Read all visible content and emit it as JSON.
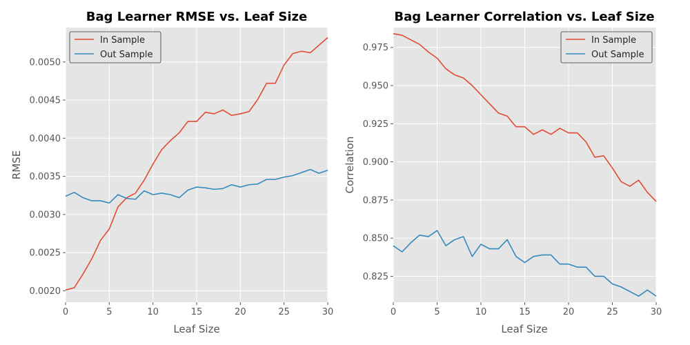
{
  "chart_data": [
    {
      "type": "line",
      "title": "Bag Learner RMSE vs. Leaf Size",
      "xlabel": "Leaf Size",
      "ylabel": "RMSE",
      "xlim": [
        0,
        30
      ],
      "ylim": [
        0.00185,
        0.00545
      ],
      "x_ticks": [
        "0",
        "5",
        "10",
        "15",
        "20",
        "25",
        "30"
      ],
      "y_ticks": [
        "0.0020",
        "0.0025",
        "0.0030",
        "0.0035",
        "0.0040",
        "0.0045",
        "0.0050"
      ],
      "grid": true,
      "legend_position": "upper-left",
      "x": [
        0,
        1,
        2,
        3,
        4,
        5,
        6,
        7,
        8,
        9,
        10,
        11,
        12,
        13,
        14,
        15,
        16,
        17,
        18,
        19,
        20,
        21,
        22,
        23,
        24,
        25,
        26,
        27,
        28,
        29,
        30
      ],
      "series": [
        {
          "name": "In Sample",
          "color": "#e24a33",
          "values": [
            0.00201,
            0.00204,
            0.00222,
            0.00242,
            0.00266,
            0.00281,
            0.0031,
            0.00322,
            0.00328,
            0.00345,
            0.00366,
            0.00385,
            0.00397,
            0.00407,
            0.00422,
            0.00422,
            0.00434,
            0.00432,
            0.00437,
            0.0043,
            0.00432,
            0.00435,
            0.00451,
            0.00472,
            0.00472,
            0.00496,
            0.00511,
            0.00514,
            0.00512,
            0.00522,
            0.00532
          ]
        },
        {
          "name": "Out Sample",
          "color": "#348abd",
          "values": [
            0.00324,
            0.00329,
            0.00322,
            0.00318,
            0.00318,
            0.00315,
            0.00326,
            0.00321,
            0.0032,
            0.00331,
            0.00326,
            0.00328,
            0.00326,
            0.00322,
            0.00332,
            0.00336,
            0.00335,
            0.00333,
            0.00334,
            0.00339,
            0.00336,
            0.00339,
            0.0034,
            0.00346,
            0.00346,
            0.00349,
            0.00351,
            0.00355,
            0.00359,
            0.00354,
            0.00358
          ]
        }
      ]
    },
    {
      "type": "line",
      "title": "Bag Learner Correlation vs. Leaf Size",
      "xlabel": "Leaf Size",
      "ylabel": "Correlation",
      "xlim": [
        0,
        30
      ],
      "ylim": [
        0.808,
        0.988
      ],
      "x_ticks": [
        "0",
        "5",
        "10",
        "15",
        "20",
        "25",
        "30"
      ],
      "y_ticks": [
        "0.825",
        "0.850",
        "0.875",
        "0.900",
        "0.925",
        "0.950",
        "0.975"
      ],
      "grid": true,
      "legend_position": "upper-right",
      "x": [
        0,
        1,
        2,
        3,
        4,
        5,
        6,
        7,
        8,
        9,
        10,
        11,
        12,
        13,
        14,
        15,
        16,
        17,
        18,
        19,
        20,
        21,
        22,
        23,
        24,
        25,
        26,
        27,
        28,
        29,
        30
      ],
      "series": [
        {
          "name": "In Sample",
          "color": "#e24a33",
          "values": [
            0.984,
            0.983,
            0.98,
            0.977,
            0.972,
            0.968,
            0.961,
            0.957,
            0.955,
            0.95,
            0.944,
            0.938,
            0.932,
            0.93,
            0.923,
            0.923,
            0.918,
            0.921,
            0.918,
            0.922,
            0.919,
            0.919,
            0.913,
            0.903,
            0.904,
            0.896,
            0.887,
            0.884,
            0.888,
            0.88,
            0.874
          ]
        },
        {
          "name": "Out Sample",
          "color": "#348abd",
          "values": [
            0.845,
            0.841,
            0.847,
            0.852,
            0.851,
            0.855,
            0.845,
            0.849,
            0.851,
            0.838,
            0.846,
            0.843,
            0.843,
            0.849,
            0.838,
            0.834,
            0.838,
            0.839,
            0.839,
            0.833,
            0.833,
            0.831,
            0.831,
            0.825,
            0.825,
            0.82,
            0.818,
            0.815,
            0.812,
            0.816,
            0.812
          ]
        }
      ]
    }
  ]
}
